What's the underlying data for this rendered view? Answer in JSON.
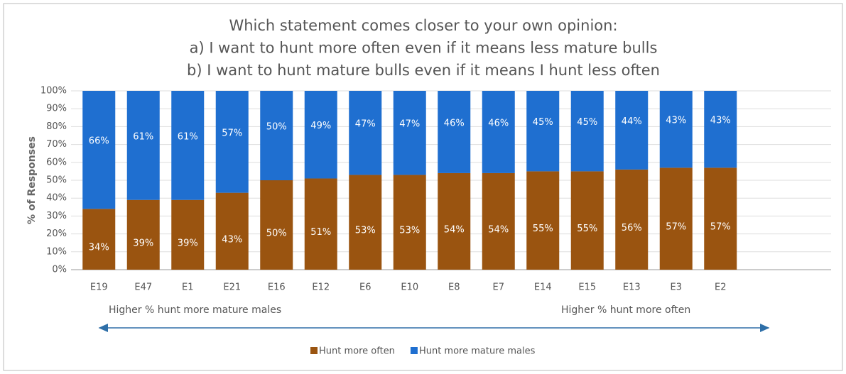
{
  "chart_data": {
    "type": "stacked_bar",
    "title": [
      "Which statement comes closer to your own opinion:",
      "a) I want to hunt more often even if it means less mature bulls",
      "b) I want to hunt mature bulls even if it means I hunt less often"
    ],
    "ylabel": "% of Responses",
    "categories": [
      "E19",
      "E47",
      "E1",
      "E21",
      "E16",
      "E12",
      "E6",
      "E10",
      "E8",
      "E7",
      "E14",
      "E15",
      "E13",
      "E3",
      "E2"
    ],
    "series": [
      {
        "name": "Hunt more often",
        "color": "#9a5410",
        "values": [
          34,
          39,
          39,
          43,
          50,
          51,
          53,
          53,
          54,
          54,
          55,
          55,
          56,
          57,
          57
        ],
        "value_labels": [
          "34%",
          "39%",
          "39%",
          "43%",
          "50%",
          "51%",
          "53%",
          "53%",
          "54%",
          "54%",
          "55%",
          "55%",
          "56%",
          "57%",
          "57%"
        ]
      },
      {
        "name": "Hunt more mature males",
        "color": "#1f6fd0",
        "values": [
          66,
          61,
          61,
          57,
          50,
          49,
          47,
          47,
          46,
          46,
          45,
          45,
          44,
          43,
          43
        ],
        "value_labels": [
          "66%",
          "61%",
          "61%",
          "57%",
          "50%",
          "49%",
          "47%",
          "47%",
          "46%",
          "46%",
          "45%",
          "45%",
          "44%",
          "43%",
          "43%"
        ]
      }
    ],
    "ylim": [
      0,
      100
    ],
    "yticks": [
      {
        "value": 0,
        "label": "0%"
      },
      {
        "value": 10,
        "label": "10%"
      },
      {
        "value": 20,
        "label": "20%"
      },
      {
        "value": 30,
        "label": "30%"
      },
      {
        "value": 40,
        "label": "40%"
      },
      {
        "value": 50,
        "label": "50%"
      },
      {
        "value": 60,
        "label": "60%"
      },
      {
        "value": 70,
        "label": "70%"
      },
      {
        "value": 80,
        "label": "80%"
      },
      {
        "value": 90,
        "label": "90%"
      },
      {
        "value": 100,
        "label": "100%"
      }
    ],
    "grid": true,
    "annotations": [
      "Higher % hunt more mature males",
      "Higher % hunt more often"
    ],
    "legend": "bottom"
  }
}
